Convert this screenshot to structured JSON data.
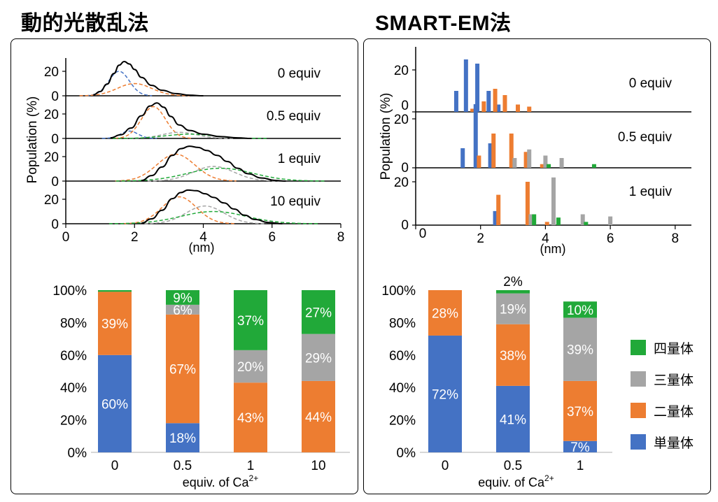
{
  "left_title": "動的光散乱法",
  "right_title": "SMART-EM法",
  "colors": {
    "single": "#4472C4",
    "dimer": "#ED7D31",
    "trimer": "#A5A5A5",
    "tetramer": "#21A939",
    "total": "#000000"
  },
  "legend": [
    {
      "label": "四量体",
      "color_key": "tetramer"
    },
    {
      "label": "三量体",
      "color_key": "trimer"
    },
    {
      "label": "二量体",
      "color_key": "dimer"
    },
    {
      "label": "単量体",
      "color_key": "single"
    }
  ],
  "chart_data": [
    {
      "id": "dls-distribution",
      "type": "line",
      "ylabel": "Population (%)",
      "xlabel": "(nm)",
      "xlim": [
        0,
        8
      ],
      "xticks": [
        "0",
        "2",
        "4",
        "6",
        "8"
      ],
      "panels": [
        {
          "label": "0 equiv",
          "ylim": [
            0,
            30
          ],
          "yticks": [
            "0",
            "20"
          ],
          "peaks": [
            {
              "species": "single",
              "mu": 1.55,
              "sigma": 0.3,
              "amp": 20.0
            },
            {
              "species": "dimer",
              "mu": 2.0,
              "sigma": 0.5,
              "amp": 10.0
            }
          ],
          "total": [
            [
              0.8,
              0.8
            ],
            [
              1.0,
              3.5
            ],
            [
              1.2,
              9.5
            ],
            [
              1.4,
              18.2
            ],
            [
              1.55,
              25.0
            ],
            [
              1.7,
              28.0
            ],
            [
              1.85,
              26.0
            ],
            [
              2.0,
              21.5
            ],
            [
              2.2,
              15.0
            ],
            [
              2.5,
              8.5
            ],
            [
              2.8,
              4.5
            ],
            [
              3.2,
              1.8
            ],
            [
              3.6,
              0.5
            ],
            [
              4.0,
              0
            ]
          ]
        },
        {
          "label": "0.5 equiv",
          "ylim": [
            0,
            30
          ],
          "yticks": [
            "0",
            "20"
          ],
          "peaks": [
            {
              "species": "single",
              "mu": 1.85,
              "sigma": 0.25,
              "amp": 6.0
            },
            {
              "species": "dimer",
              "mu": 2.55,
              "sigma": 0.35,
              "amp": 26.0
            },
            {
              "species": "trimer",
              "mu": 3.3,
              "sigma": 0.5,
              "amp": 5.0
            },
            {
              "species": "tetramer",
              "mu": 3.6,
              "sigma": 0.7,
              "amp": 3.5
            }
          ],
          "total": [
            [
              1.3,
              0.5
            ],
            [
              1.6,
              3.0
            ],
            [
              1.9,
              8.5
            ],
            [
              2.2,
              18.5
            ],
            [
              2.45,
              26.5
            ],
            [
              2.65,
              29.0
            ],
            [
              2.85,
              25.5
            ],
            [
              3.05,
              18.0
            ],
            [
              3.3,
              11.0
            ],
            [
              3.6,
              6.5
            ],
            [
              4.0,
              3.5
            ],
            [
              4.5,
              1.5
            ],
            [
              5.0,
              0.5
            ],
            [
              5.4,
              0
            ]
          ]
        },
        {
          "label": "1 equiv",
          "ylim": [
            0,
            30
          ],
          "yticks": [
            "0",
            "20"
          ],
          "peaks": [
            {
              "species": "dimer",
              "mu": 3.2,
              "sigma": 0.55,
              "amp": 22.0
            },
            {
              "species": "trimer",
              "mu": 4.3,
              "sigma": 0.6,
              "amp": 12.0
            },
            {
              "species": "tetramer",
              "mu": 4.5,
              "sigma": 0.95,
              "amp": 10.5
            }
          ],
          "total": [
            [
              2.2,
              0.5
            ],
            [
              2.5,
              4.5
            ],
            [
              2.8,
              11.5
            ],
            [
              3.1,
              21.0
            ],
            [
              3.35,
              26.5
            ],
            [
              3.6,
              28.5
            ],
            [
              3.85,
              27.5
            ],
            [
              4.1,
              25.0
            ],
            [
              4.4,
              21.0
            ],
            [
              4.7,
              16.0
            ],
            [
              5.0,
              10.5
            ],
            [
              5.3,
              6.0
            ],
            [
              5.7,
              2.5
            ],
            [
              6.1,
              0.5
            ],
            [
              6.4,
              0
            ]
          ]
        },
        {
          "label": "10 equiv",
          "ylim": [
            0,
            30
          ],
          "yticks": [
            "0",
            "20"
          ],
          "peaks": [
            {
              "species": "dimer",
              "mu": 3.3,
              "sigma": 0.5,
              "amp": 22.0
            },
            {
              "species": "trimer",
              "mu": 4.05,
              "sigma": 0.55,
              "amp": 14.5
            },
            {
              "species": "tetramer",
              "mu": 4.3,
              "sigma": 0.95,
              "amp": 10.0
            }
          ],
          "total": [
            [
              2.2,
              0.5
            ],
            [
              2.5,
              4.0
            ],
            [
              2.8,
              11.0
            ],
            [
              3.1,
              20.5
            ],
            [
              3.35,
              25.5
            ],
            [
              3.55,
              27.5
            ],
            [
              3.8,
              27.0
            ],
            [
              4.05,
              24.5
            ],
            [
              4.3,
              21.5
            ],
            [
              4.6,
              17.0
            ],
            [
              4.9,
              12.0
            ],
            [
              5.2,
              7.0
            ],
            [
              5.5,
              3.5
            ],
            [
              5.9,
              1.0
            ],
            [
              6.3,
              0
            ]
          ]
        }
      ]
    },
    {
      "id": "smart-em-histogram",
      "type": "bar",
      "ylabel": "Population (%)",
      "xlabel": "(nm)",
      "xlim": [
        0,
        8.5
      ],
      "xticks": [
        "0",
        "2",
        "4",
        "6",
        "8"
      ],
      "panels": [
        {
          "label": "0 equiv",
          "ylim": [
            0,
            30
          ],
          "yticks": [
            "0",
            "20"
          ],
          "bars": [
            {
              "species": "single",
              "x": 1.25,
              "value": 10
            },
            {
              "species": "single",
              "x": 1.55,
              "value": 25
            },
            {
              "species": "single",
              "x": 1.9,
              "value": 23
            },
            {
              "species": "single",
              "x": 2.25,
              "value": 10
            },
            {
              "species": "single",
              "x": 2.55,
              "value": 3.5
            },
            {
              "species": "dimer",
              "x": 1.75,
              "value": 1.5
            },
            {
              "species": "dimer",
              "x": 2.1,
              "value": 5
            },
            {
              "species": "dimer",
              "x": 2.45,
              "value": 11
            },
            {
              "species": "dimer",
              "x": 2.75,
              "value": 8
            },
            {
              "species": "dimer",
              "x": 3.15,
              "value": 3.5
            },
            {
              "species": "dimer",
              "x": 3.5,
              "value": 2.5
            }
          ]
        },
        {
          "label": "0.5 equiv",
          "ylim": [
            0,
            28
          ],
          "yticks": [
            "0",
            "20"
          ],
          "bars": [
            {
              "species": "single",
              "x": 1.45,
              "value": 8
            },
            {
              "species": "single",
              "x": 1.85,
              "value": 26
            },
            {
              "species": "single",
              "x": 2.3,
              "value": 10
            },
            {
              "species": "dimer",
              "x": 1.95,
              "value": 5
            },
            {
              "species": "dimer",
              "x": 2.4,
              "value": 14
            },
            {
              "species": "dimer",
              "x": 2.95,
              "value": 14
            },
            {
              "species": "dimer",
              "x": 3.4,
              "value": 6.5
            },
            {
              "species": "dimer",
              "x": 3.9,
              "value": 1.5
            },
            {
              "species": "trimer",
              "x": 3.05,
              "value": 4
            },
            {
              "species": "trimer",
              "x": 3.5,
              "value": 7.5
            },
            {
              "species": "trimer",
              "x": 4.0,
              "value": 5
            },
            {
              "species": "trimer",
              "x": 4.5,
              "value": 4
            },
            {
              "species": "tetramer",
              "x": 4.1,
              "value": 1.5
            },
            {
              "species": "tetramer",
              "x": 5.5,
              "value": 1.5
            }
          ]
        },
        {
          "label": "1 equiv",
          "ylim": [
            0,
            28
          ],
          "yticks": [
            "0",
            "20"
          ],
          "bars": [
            {
              "species": "single",
              "x": 2.45,
              "value": 6.5
            },
            {
              "species": "dimer",
              "x": 2.55,
              "value": 14
            },
            {
              "species": "dimer",
              "x": 3.45,
              "value": 20
            },
            {
              "species": "dimer",
              "x": 4.05,
              "value": 1.5
            },
            {
              "species": "trimer",
              "x": 3.55,
              "value": 5
            },
            {
              "species": "trimer",
              "x": 4.25,
              "value": 22
            },
            {
              "species": "trimer",
              "x": 5.15,
              "value": 5
            },
            {
              "species": "trimer",
              "x": 6.0,
              "value": 4
            },
            {
              "species": "tetramer",
              "x": 3.65,
              "value": 5
            },
            {
              "species": "tetramer",
              "x": 4.4,
              "value": 3.5
            },
            {
              "species": "tetramer",
              "x": 5.25,
              "value": 1.5
            }
          ]
        }
      ]
    },
    {
      "id": "dls-composition",
      "type": "bar",
      "stacked": true,
      "xlabel_main": "equiv. of Ca",
      "xlabel_sup": "2+",
      "ylim": [
        0,
        100
      ],
      "yticks": [
        "0%",
        "20%",
        "40%",
        "60%",
        "80%",
        "100%"
      ],
      "categories": [
        "0",
        "0.5",
        "1",
        "10"
      ],
      "series": [
        {
          "species": "single",
          "values": [
            60,
            18,
            0,
            0
          ],
          "labels": [
            "60%",
            "18%",
            "",
            ""
          ]
        },
        {
          "species": "dimer",
          "values": [
            39,
            67,
            43,
            44
          ],
          "labels": [
            "39%",
            "67%",
            "43%",
            "44%"
          ]
        },
        {
          "species": "trimer",
          "values": [
            0,
            6,
            20,
            29
          ],
          "labels": [
            "",
            "6%",
            "20%",
            "29%"
          ]
        },
        {
          "species": "tetramer",
          "values": [
            1,
            9,
            37,
            27
          ],
          "labels": [
            "",
            "9%",
            "37%",
            "27%"
          ]
        }
      ]
    },
    {
      "id": "smart-em-composition",
      "type": "bar",
      "stacked": true,
      "xlabel_main": "equiv. of Ca",
      "xlabel_sup": "2+",
      "ylim": [
        0,
        100
      ],
      "yticks": [
        "0%",
        "20%",
        "40%",
        "60%",
        "80%",
        "100%"
      ],
      "categories": [
        "0",
        "0.5",
        "1"
      ],
      "series": [
        {
          "species": "single",
          "values": [
            72,
            41,
            7
          ],
          "labels": [
            "72%",
            "41%",
            "7%"
          ]
        },
        {
          "species": "dimer",
          "values": [
            28,
            38,
            37
          ],
          "labels": [
            "28%",
            "38%",
            "37%"
          ]
        },
        {
          "species": "trimer",
          "values": [
            0,
            19,
            39
          ],
          "labels": [
            "",
            "19%",
            "39%"
          ]
        },
        {
          "species": "tetramer",
          "values": [
            0,
            2,
            10
          ],
          "labels": [
            "",
            "2%",
            "10%"
          ]
        }
      ]
    }
  ]
}
